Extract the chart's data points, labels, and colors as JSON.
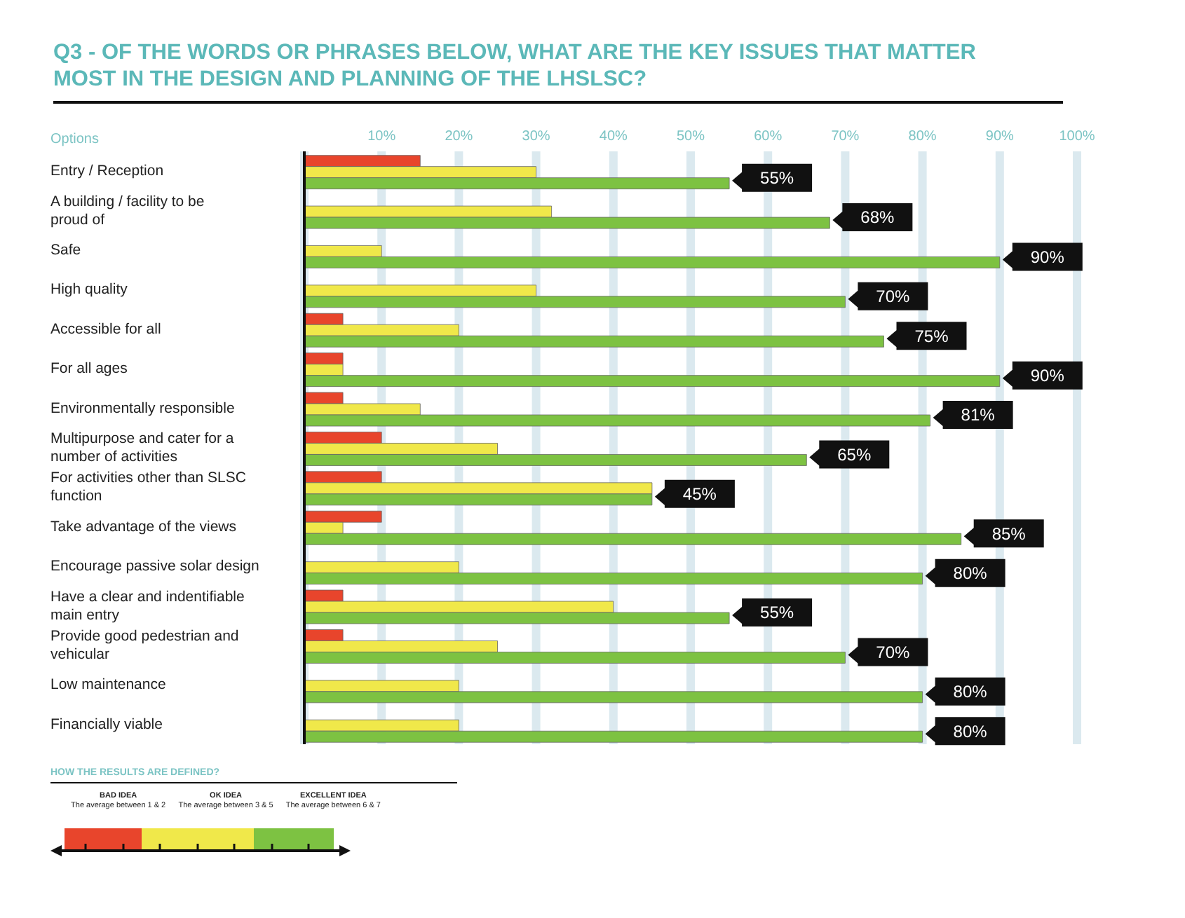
{
  "chart_data": {
    "type": "bar",
    "orientation": "horizontal",
    "title": "Q3 - OF THE WORDS OR PHRASES BELOW, WHAT ARE THE KEY ISSUES THAT MATTER MOST IN THE DESIGN AND PLANNING OF THE LHSLSC?",
    "ylabel": "Options",
    "categories": [
      "Entry / Reception",
      "A building / facility to be proud of",
      "Safe",
      "High quality",
      "Accessible for all",
      "For all ages",
      "Environmentally responsible",
      "Multipurpose and cater for a number of activities",
      "For activities other than SLSC function",
      "Take advantage of the views",
      "Encourage passive solar design",
      "Have a clear and indentifiable main entry",
      "Provide good pedestrian and vehicular",
      "Low maintenance",
      "Financially viable"
    ],
    "series": [
      {
        "color": "#e8452c",
        "values": [
          15,
          null,
          null,
          null,
          5,
          5,
          5,
          10,
          10,
          10,
          null,
          5,
          5,
          null,
          null
        ]
      },
      {
        "color": "#f0e84a",
        "values": [
          30,
          32,
          10,
          30,
          20,
          5,
          15,
          25,
          45,
          5,
          20,
          40,
          25,
          20,
          20
        ]
      },
      {
        "color": "#7dc242",
        "values": [
          55,
          68,
          90,
          70,
          75,
          90,
          81,
          65,
          45,
          85,
          80,
          55,
          70,
          80,
          80
        ],
        "value_labels": [
          "55%",
          "68%",
          "90%",
          "70%",
          "75%",
          "90%",
          "81%",
          "65%",
          "45%",
          "85%",
          "80%",
          "55%",
          "70%",
          "80%",
          "80%"
        ]
      }
    ],
    "xlim": [
      0,
      100
    ],
    "xticks": [
      {
        "value": 10,
        "label": "10%"
      },
      {
        "value": 20,
        "label": "20%"
      },
      {
        "value": 30,
        "label": "30%"
      },
      {
        "value": 40,
        "label": "40%"
      },
      {
        "value": 50,
        "label": "50%"
      },
      {
        "value": 60,
        "label": "60%"
      },
      {
        "value": 70,
        "label": "70%"
      },
      {
        "value": 80,
        "label": "80%"
      },
      {
        "value": 90,
        "label": "90%"
      },
      {
        "value": 100,
        "label": "100%"
      }
    ],
    "grid": "x",
    "legend": false,
    "annotations": [
      "HOW THE RESULTS ARE DEFINED?",
      "BAD IDEA",
      "The average between 1 & 2",
      "OK IDEA",
      "The average between 3 & 5",
      "EXCELLENT IDEA",
      "The average between 6 & 7"
    ]
  }
}
